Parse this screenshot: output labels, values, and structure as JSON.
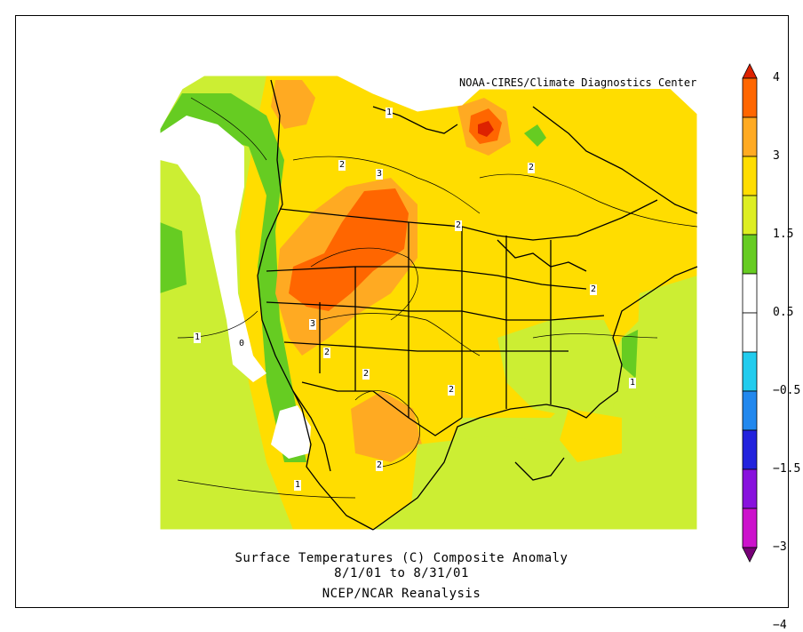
{
  "map": {
    "credit": "NOAA-CIRES/Climate Diagnostics Center",
    "title_line1": "Surface Temperatures (C)   Composite Anomaly",
    "title_line2": "8/1/01  to 8/31/01",
    "title_line3": "NCEP/NCAR Reanalysis",
    "contour_labels": [
      "1",
      "2",
      "3",
      "2",
      "2",
      "3",
      "2",
      "2",
      "2",
      "2",
      "0",
      "1",
      "1",
      "1",
      "2",
      "2",
      "2"
    ]
  },
  "colorbar": {
    "labels": [
      "4",
      "3",
      "1.5",
      "0.5",
      "−0.5",
      "−1.5",
      "−3",
      "−4"
    ],
    "colors": [
      "#dd2200",
      "#ff6600",
      "#ffaa22",
      "#ffdd00",
      "#ddee22",
      "#66cc22",
      "#ffffff",
      "#ffffff",
      "#22ccee",
      "#2288ee",
      "#2222dd",
      "#8811dd",
      "#cc11cc",
      "#770077"
    ]
  },
  "palette": {
    "land_base": "#ffdd00",
    "ocean_base": "#ccee33",
    "band_1_0": "#66cc22",
    "band_2_0": "#ffaa22",
    "band_3_0": "#ff6600",
    "band_4_0": "#dd2200",
    "near_zero": "#ffffff"
  }
}
